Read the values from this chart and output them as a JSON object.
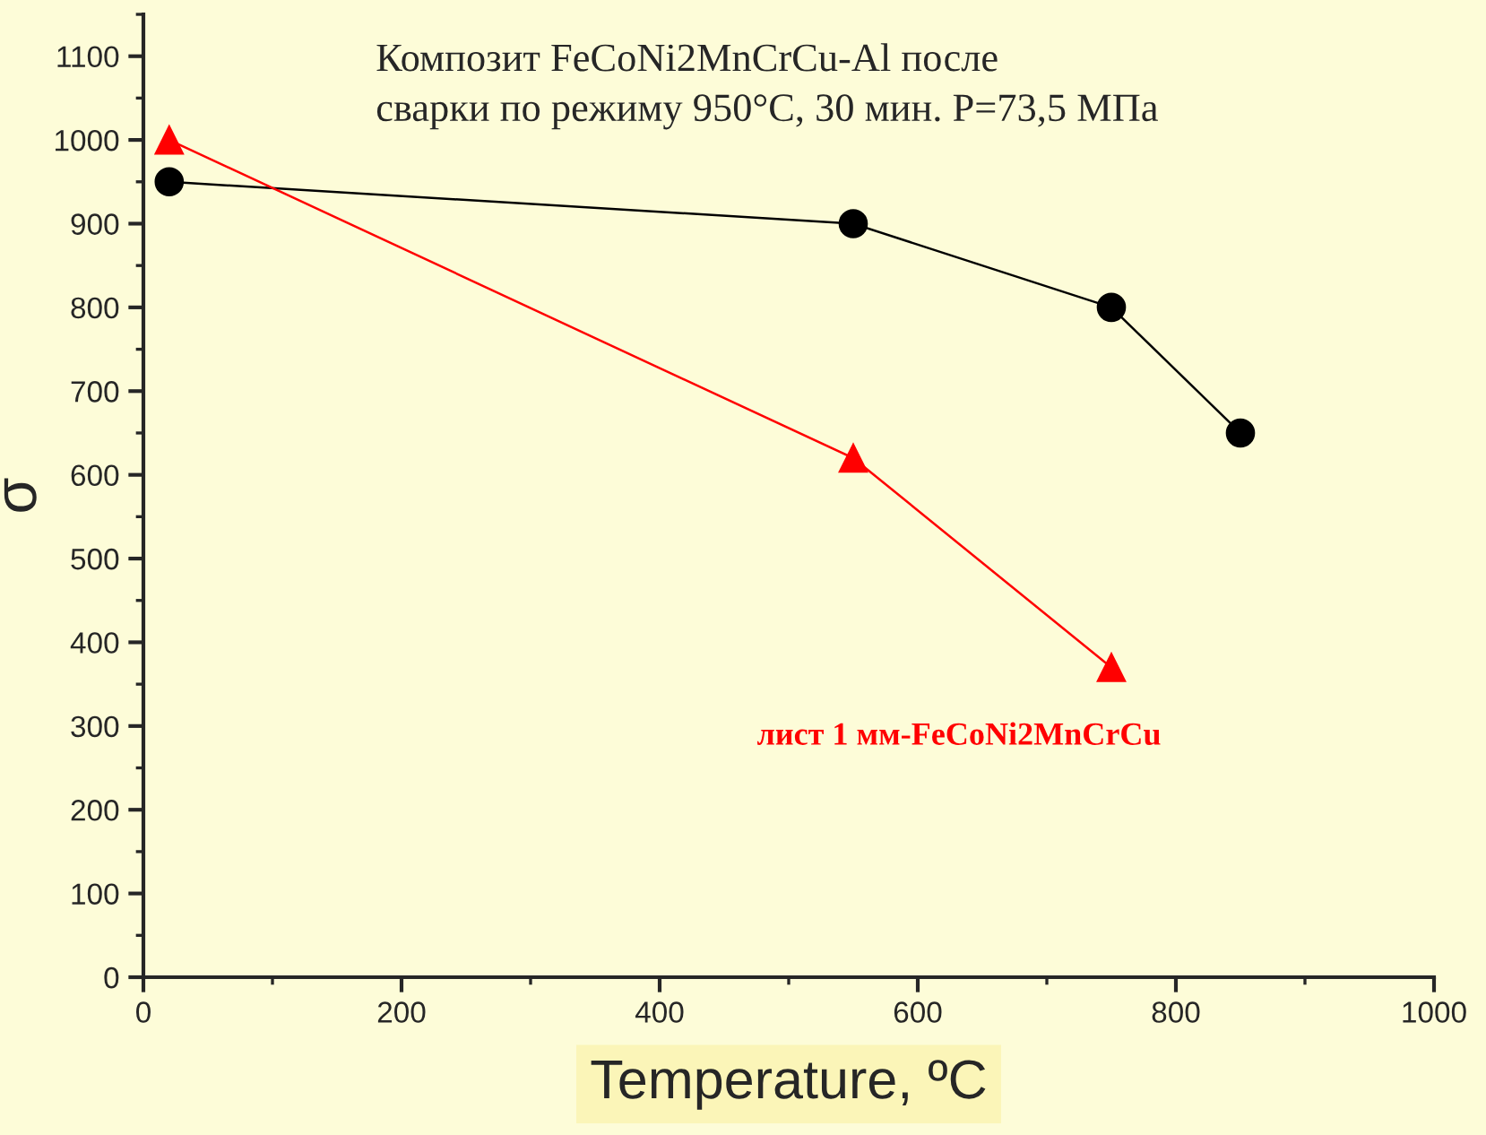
{
  "chart_data": {
    "type": "line",
    "ylabel": "σ",
    "xlabel": "Temperature, ºC",
    "xlim": [
      0,
      1000
    ],
    "xticks": [
      0,
      200,
      400,
      600,
      800,
      1000
    ],
    "ylim": [
      0,
      1150
    ],
    "yticks": [
      0,
      100,
      200,
      300,
      400,
      500,
      600,
      700,
      800,
      900,
      1000,
      1100
    ],
    "grid": false,
    "legend": false,
    "series": [
      {
        "name": "Композит FeCoNi2MnCrCu-Al после\nсварки по режиму 950°С, 30 мин. P=73,5 МПа",
        "color": "#000000",
        "marker": "circle",
        "x": [
          20,
          550,
          750,
          850
        ],
        "values": [
          950,
          900,
          800,
          650
        ]
      },
      {
        "name": "лист 1 мм-FeCoNi2MnCrCu",
        "color": "#ff0000",
        "marker": "triangle",
        "x": [
          20,
          550,
          750
        ],
        "values": [
          1000,
          620,
          370
        ]
      }
    ]
  }
}
